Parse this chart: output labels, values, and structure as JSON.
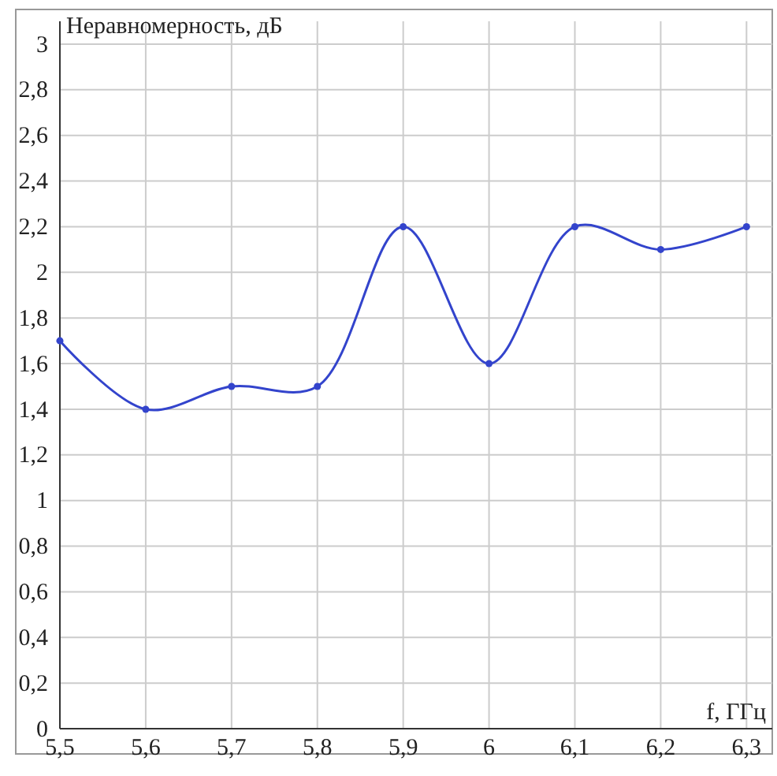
{
  "chart_data": {
    "type": "line",
    "xlabel": "f, ГГц",
    "ylabel": "Неравномерность, дБ",
    "x": [
      5.5,
      5.6,
      5.7,
      5.8,
      5.9,
      6.0,
      6.1,
      6.2,
      6.3
    ],
    "series": [
      {
        "color": "#3344cc",
        "values": [
          1.7,
          1.4,
          1.5,
          1.5,
          2.2,
          1.6,
          2.2,
          2.1,
          2.2
        ]
      }
    ],
    "xlim": [
      5.5,
      6.33
    ],
    "ylim": [
      0,
      3.1
    ],
    "xticks": [
      {
        "value": 5.5,
        "label": "5,5"
      },
      {
        "value": 5.6,
        "label": "5,6"
      },
      {
        "value": 5.7,
        "label": "5,7"
      },
      {
        "value": 5.8,
        "label": "5,8"
      },
      {
        "value": 5.9,
        "label": "5,9"
      },
      6,
      {
        "value": 6.1,
        "label": "6,1"
      },
      {
        "value": 6.2,
        "label": "6,2"
      },
      {
        "value": 6.3,
        "label": "6,3"
      }
    ],
    "yticks": [
      0,
      {
        "value": 0.2,
        "label": "0,2"
      },
      {
        "value": 0.4,
        "label": "0,4"
      },
      {
        "value": 0.6,
        "label": "0,6"
      },
      {
        "value": 0.8,
        "label": "0,8"
      },
      1,
      {
        "value": 1.2,
        "label": "1,2"
      },
      {
        "value": 1.4,
        "label": "1,4"
      },
      {
        "value": 1.6,
        "label": "1,6"
      },
      {
        "value": 1.8,
        "label": "1,8"
      },
      2,
      {
        "value": 2.2,
        "label": "2,2"
      },
      {
        "value": 2.4,
        "label": "2,4"
      },
      {
        "value": 2.6,
        "label": "2,6"
      },
      {
        "value": 2.8,
        "label": "2,8"
      },
      3
    ],
    "grid": true,
    "marker": "circle",
    "line_style": "solid"
  }
}
